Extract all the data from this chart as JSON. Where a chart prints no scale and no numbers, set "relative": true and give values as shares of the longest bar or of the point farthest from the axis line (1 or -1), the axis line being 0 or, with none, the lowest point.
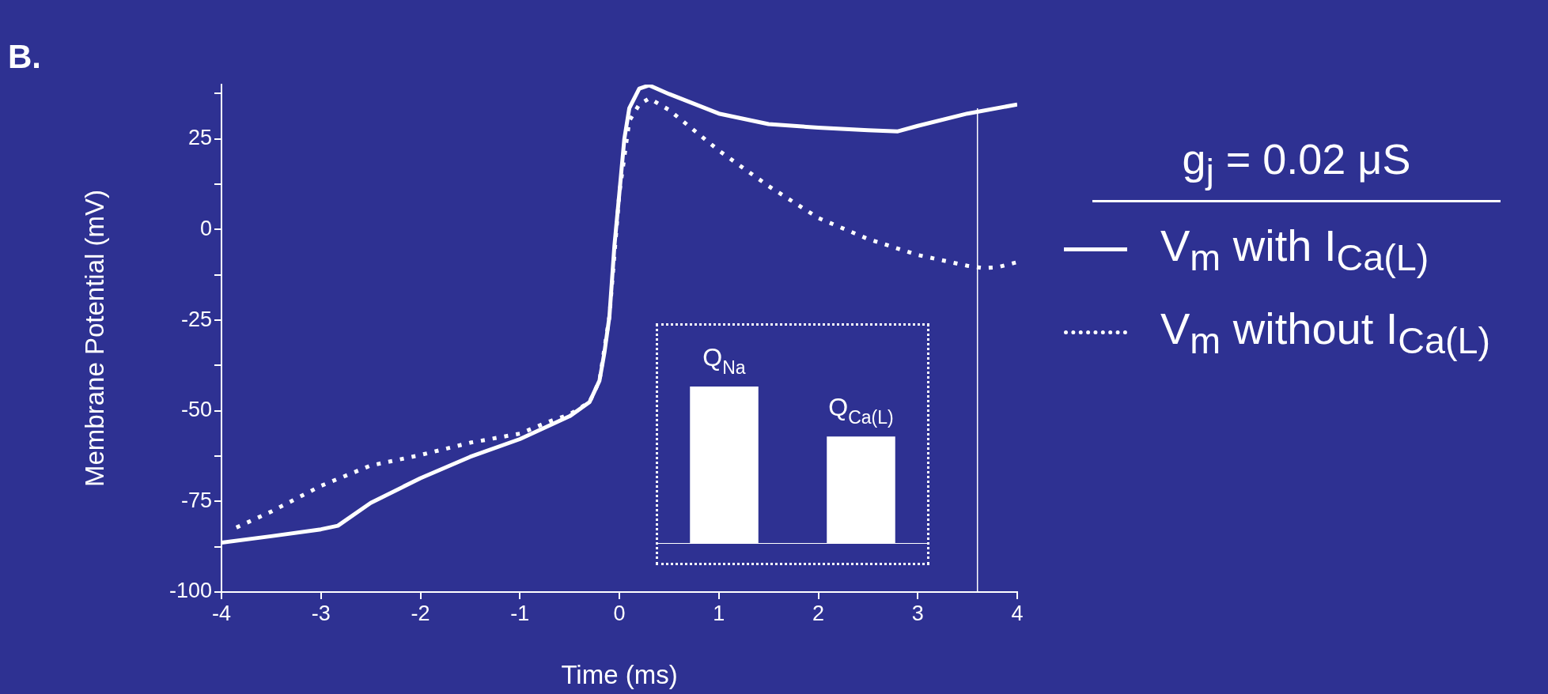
{
  "chart_data": [
    {
      "type": "line",
      "xlabel": "Time (ms)",
      "ylabel": "Membrane Potential (mV)",
      "xlim": [
        -4,
        4
      ],
      "xticks": [
        -4,
        -3,
        -2,
        -1,
        0,
        1,
        2,
        3,
        4
      ],
      "ylim": [
        -100,
        40
      ],
      "yticks": [
        -100,
        {
          "value": -87.5,
          "label": null
        },
        -75,
        {
          "value": -62.5,
          "label": null
        },
        -50,
        {
          "value": -37.5,
          "label": null
        },
        -25,
        {
          "value": -12.5,
          "label": null
        },
        0,
        {
          "value": 12.5,
          "label": null
        },
        25,
        {
          "value": 37.5,
          "label": null
        }
      ],
      "legend": "right",
      "legend_title": "g$_{j}$ = 0.02 μS",
      "annotations": [
        "B."
      ],
      "ref_lines": [
        {
          "axis": "x",
          "value": 3.6,
          "color": "#ffffff"
        }
      ],
      "series": [
        {
          "name": "V$_{m}$ with I$_{Ca(L)}$",
          "color": "#ffffff",
          "line_style": "solid",
          "x": [
            -4,
            -3.5,
            -3,
            -2.83,
            -2.5,
            -2,
            -1.5,
            -1,
            -0.5,
            -0.3,
            -0.2,
            -0.15,
            -0.1,
            -0.05,
            0,
            0.05,
            0.1,
            0.2,
            0.3,
            0.5,
            1,
            1.5,
            2,
            2.5,
            2.8,
            3,
            3.5,
            4
          ],
          "values": [
            -86.4,
            -84.6,
            -82.7,
            -81.7,
            -75.4,
            -68.6,
            -62.7,
            -57.8,
            -51.5,
            -47.6,
            -41.7,
            -33.9,
            -24,
            -4.6,
            10,
            25,
            33.5,
            38.9,
            39.8,
            37.4,
            32,
            29.1,
            28.1,
            27.4,
            27.1,
            28.6,
            32,
            34.5
          ]
        },
        {
          "name": "V$_{m}$ without I$_{Ca(L)}$",
          "color": "#ffffff",
          "line_style": "dotted",
          "x": [
            -3.85,
            -3.5,
            -3,
            -2.5,
            -2,
            -1.5,
            -1,
            -0.7,
            -0.5,
            -0.3,
            -0.2,
            -0.1,
            0,
            0.1,
            0.2,
            0.3,
            0.5,
            1,
            1.5,
            2,
            2.5,
            3,
            3.5,
            3.65,
            3.8,
            4
          ],
          "values": [
            -82.2,
            -77.8,
            -70.7,
            -65.1,
            -62.2,
            -58.8,
            -56.3,
            -52.9,
            -51,
            -47.6,
            -41.7,
            -24,
            10,
            30,
            34.5,
            36.2,
            33,
            21.8,
            12,
            3.2,
            -2.6,
            -7,
            -10,
            -10.6,
            -10.4,
            -9
          ]
        }
      ]
    },
    {
      "type": "bar",
      "categories": [
        "Q$_{Na}$",
        "Q$_{Ca(L)}$"
      ],
      "values": [
        1,
        0.68
      ],
      "color": "#ffffff",
      "relative": true
    }
  ]
}
